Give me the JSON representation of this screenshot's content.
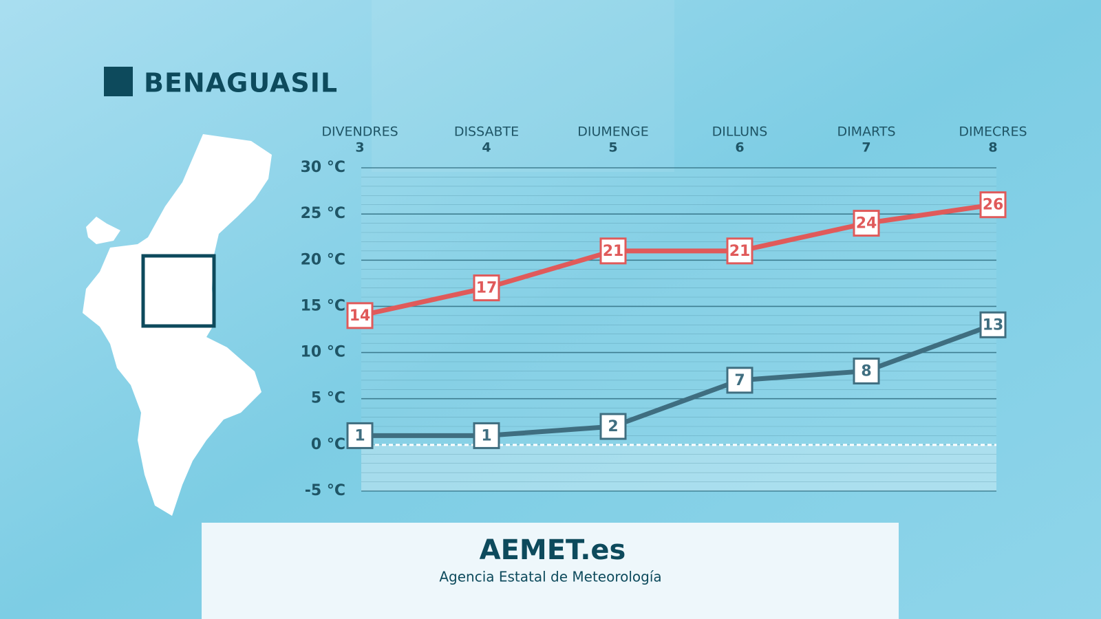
{
  "chart_data": {
    "type": "line",
    "title": "BENAGUASIL",
    "categories": [
      [
        "DIVENDRES",
        "3"
      ],
      [
        "DISSABTE",
        "4"
      ],
      [
        "DIUMENGE",
        "5"
      ],
      [
        "DILLUNS",
        "6"
      ],
      [
        "DIMARTS",
        "7"
      ],
      [
        "DIMECRES",
        "8"
      ]
    ],
    "series": [
      {
        "color": "#e05a5a",
        "values": [
          14,
          17,
          21,
          21,
          24,
          26
        ]
      },
      {
        "color": "#3f6e80",
        "values": [
          1,
          1,
          2,
          7,
          8,
          13
        ]
      }
    ],
    "ylim": [
      -5,
      30
    ],
    "yticks": [
      {
        "value": -5,
        "label": "-5 °C"
      },
      {
        "value": 0,
        "label": "0 °C"
      },
      {
        "value": 5,
        "label": "5 °C"
      },
      {
        "value": 10,
        "label": "10 °C"
      },
      {
        "value": 15,
        "label": "15 °C"
      },
      {
        "value": 20,
        "label": "20 °C"
      },
      {
        "value": 25,
        "label": "25 °C"
      },
      {
        "value": 30,
        "label": "30 °C"
      }
    ],
    "grid": true
  },
  "footer": {
    "brand": "AEMET.es",
    "subtitle": "Agencia Estatal de Meteorología"
  }
}
